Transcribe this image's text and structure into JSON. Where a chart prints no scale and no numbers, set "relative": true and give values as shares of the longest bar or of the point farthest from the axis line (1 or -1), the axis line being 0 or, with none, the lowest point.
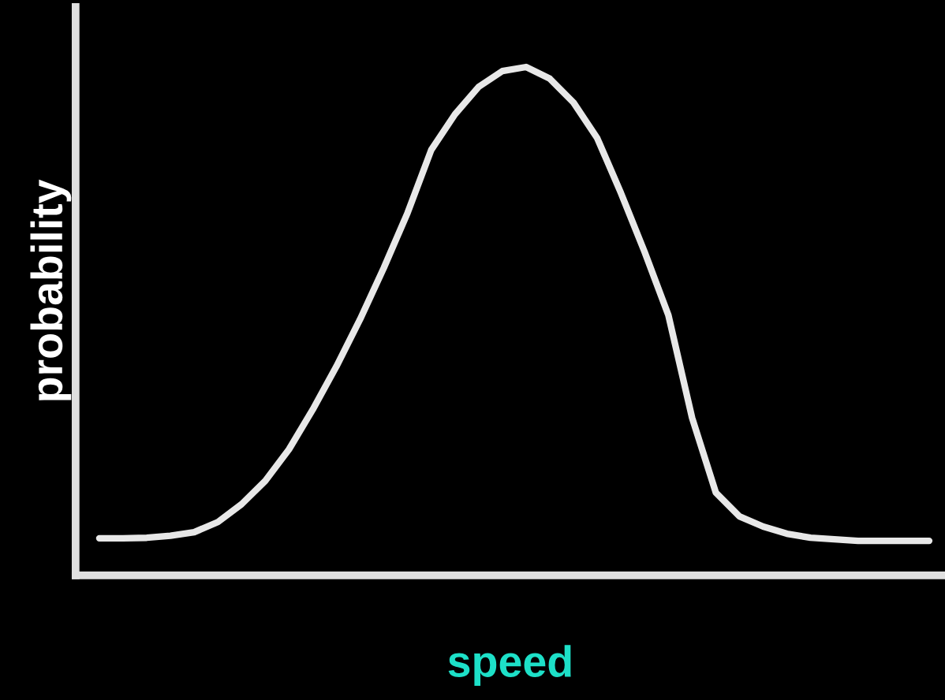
{
  "chart_data": {
    "type": "line",
    "relative": true,
    "xlabel": "speed",
    "ylabel": "probability",
    "categories": [
      null,
      null,
      null,
      null,
      null,
      null,
      null,
      null,
      null,
      null,
      null,
      null,
      null,
      null,
      null,
      null,
      null,
      null,
      null,
      null,
      null,
      null,
      null,
      null,
      null,
      null,
      null,
      null,
      null,
      null,
      null,
      null,
      null,
      null,
      null,
      null
    ],
    "series": [
      {
        "color": "#e8e8e8",
        "values": [
          0.073,
          0.073,
          0.074,
          0.078,
          0.085,
          0.105,
          0.14,
          0.186,
          0.248,
          0.326,
          0.411,
          0.504,
          0.605,
          0.713,
          0.837,
          0.907,
          0.961,
          0.992,
          1.0,
          0.977,
          0.93,
          0.86,
          0.752,
          0.636,
          0.512,
          0.31,
          0.163,
          0.116,
          0.096,
          0.082,
          0.074,
          0.071,
          0.068,
          0.068,
          0.068,
          0.068
        ]
      }
    ],
    "grid": false,
    "legend": false,
    "marker": "none",
    "line_style": "solid"
  }
}
